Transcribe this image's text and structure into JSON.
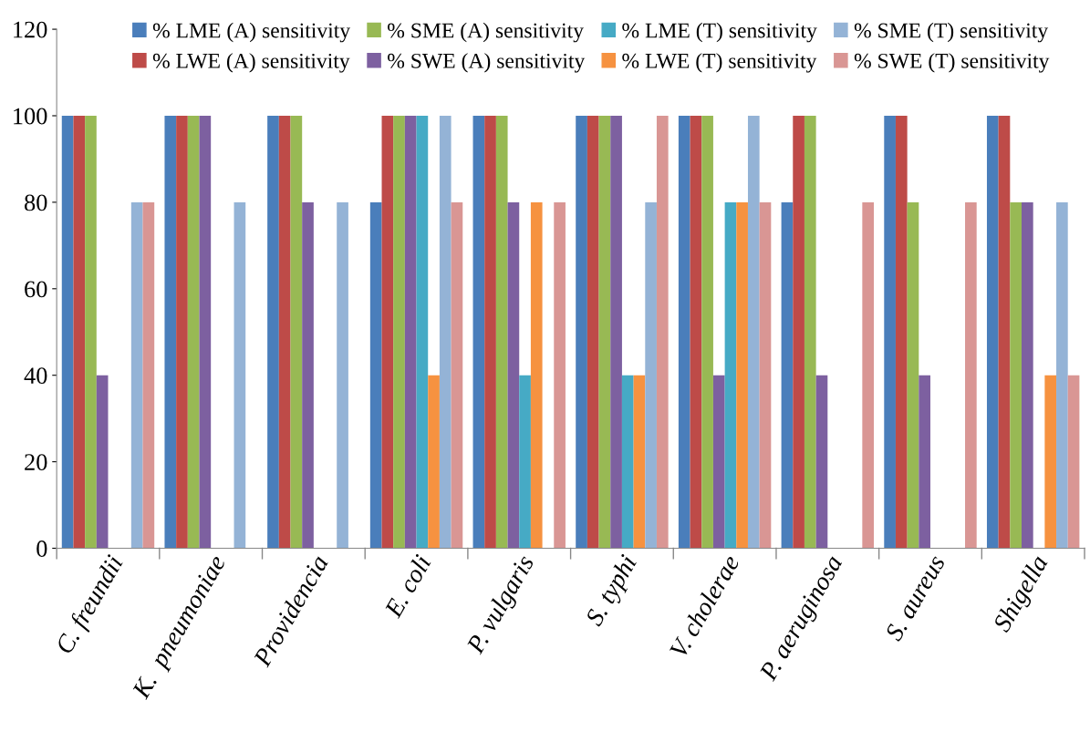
{
  "chart_data": {
    "type": "bar",
    "categories": [
      "C. freundii",
      "K.  pneumoniae",
      "Providencia",
      "E. coli",
      "P. vulgaris",
      "S. typhi",
      "V. cholerae",
      "P. aeruginosa",
      "S. aureus",
      "Shigella"
    ],
    "series": [
      {
        "name": "% LME (A) sensitivity",
        "color": "#4a7ebb",
        "values": [
          100,
          100,
          100,
          80,
          100,
          100,
          100,
          80,
          100,
          100
        ]
      },
      {
        "name": "% LWE (A) sensitivity",
        "color": "#be4b48",
        "values": [
          100,
          100,
          100,
          100,
          100,
          100,
          100,
          100,
          100,
          100
        ]
      },
      {
        "name": "% SME (A) sensitivity",
        "color": "#98b954",
        "values": [
          100,
          100,
          100,
          100,
          100,
          100,
          100,
          100,
          80,
          80
        ]
      },
      {
        "name": "% SWE (A) sensitivity",
        "color": "#7d60a0",
        "values": [
          40,
          100,
          80,
          100,
          80,
          100,
          40,
          40,
          40,
          80
        ]
      },
      {
        "name": "% LME (T) sensitivity",
        "color": "#46aac5",
        "values": [
          0,
          0,
          0,
          100,
          40,
          40,
          80,
          0,
          0,
          0
        ]
      },
      {
        "name": "% LWE (T) sensitivity",
        "color": "#f69240",
        "values": [
          0,
          0,
          0,
          40,
          80,
          40,
          80,
          0,
          0,
          40
        ]
      },
      {
        "name": "% SME (T) sensitivity",
        "color": "#94b3d6",
        "values": [
          80,
          80,
          80,
          100,
          0,
          80,
          100,
          0,
          0,
          80
        ]
      },
      {
        "name": "% SWE (T) sensitivity",
        "color": "#d99694",
        "values": [
          80,
          0,
          0,
          80,
          80,
          100,
          80,
          80,
          80,
          40
        ]
      }
    ],
    "ylim": [
      0,
      120
    ],
    "yticks": [
      0,
      20,
      40,
      60,
      80,
      100,
      120
    ],
    "grid": false,
    "legend": "top"
  }
}
